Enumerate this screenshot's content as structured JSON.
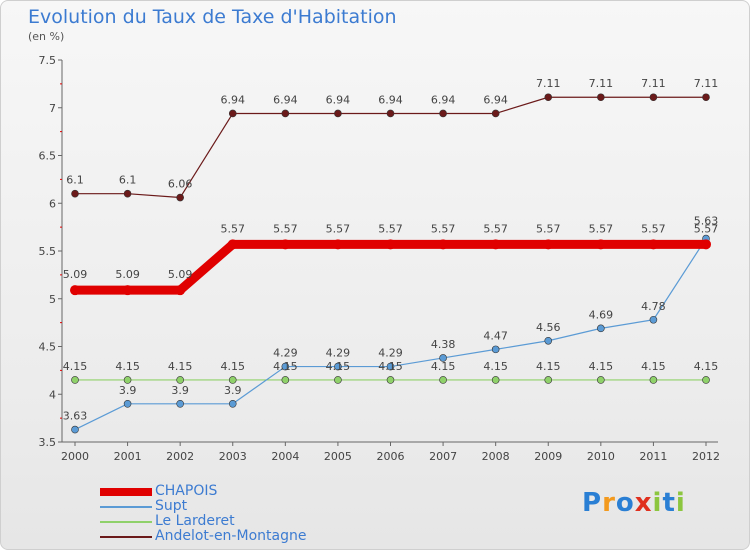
{
  "title": "Evolution du Taux de Taxe d'Habitation",
  "subtitle": "(en %)",
  "logo_text": "Proxiti",
  "chart_data": {
    "type": "line",
    "x": [
      "2000",
      "2001",
      "2002",
      "2003",
      "2004",
      "2005",
      "2006",
      "2007",
      "2008",
      "2009",
      "2010",
      "2011",
      "2012"
    ],
    "ylim": [
      3.5,
      7.5
    ],
    "yticks": [
      "3.5",
      "4",
      "4.5",
      "5",
      "5.5",
      "6",
      "6.5",
      "7",
      "7.5"
    ],
    "grid": false,
    "legend_position": "bottom-left",
    "series": [
      {
        "name": "CHAPOIS",
        "color": "#e00000",
        "values": [
          5.09,
          5.09,
          5.09,
          5.57,
          5.57,
          5.57,
          5.57,
          5.57,
          5.57,
          5.57,
          5.57,
          5.57,
          5.57
        ],
        "labels": [
          "5.09",
          "5.09",
          "5.09",
          "5.57",
          "5.57",
          "5.57",
          "5.57",
          "5.57",
          "5.57",
          "5.57",
          "5.57",
          "5.57",
          "5.57"
        ]
      },
      {
        "name": "Supt",
        "color": "#5b9bd5",
        "values": [
          3.63,
          3.9,
          3.9,
          3.9,
          4.29,
          4.29,
          4.29,
          4.38,
          4.47,
          4.56,
          4.69,
          4.78,
          5.63
        ],
        "labels": [
          "3.63",
          "3.9",
          "3.9",
          "3.9",
          "4.29",
          "4.29",
          "4.29",
          "4.38",
          "4.47",
          "4.56",
          "4.69",
          "4.78",
          "5.63"
        ]
      },
      {
        "name": "Le Larderet",
        "color": "#8fd16a",
        "values": [
          4.15,
          4.15,
          4.15,
          4.15,
          4.15,
          4.15,
          4.15,
          4.15,
          4.15,
          4.15,
          4.15,
          4.15,
          4.15
        ],
        "labels": [
          "4.15",
          "4.15",
          "4.15",
          "4.15",
          "4.15",
          "4.15",
          "4.15",
          "4.15",
          "4.15",
          "4.15",
          "4.15",
          "4.15",
          "4.15"
        ]
      },
      {
        "name": "Andelot-en-Montagne",
        "color": "#6b1a1a",
        "values": [
          6.1,
          6.1,
          6.06,
          6.94,
          6.94,
          6.94,
          6.94,
          6.94,
          6.94,
          7.11,
          7.11,
          7.11,
          7.11
        ],
        "labels": [
          "6.1",
          "6.1",
          "6.06",
          "6.94",
          "6.94",
          "6.94",
          "6.94",
          "6.94",
          "6.94",
          "7.11",
          "7.11",
          "7.11",
          "7.11"
        ]
      }
    ]
  }
}
